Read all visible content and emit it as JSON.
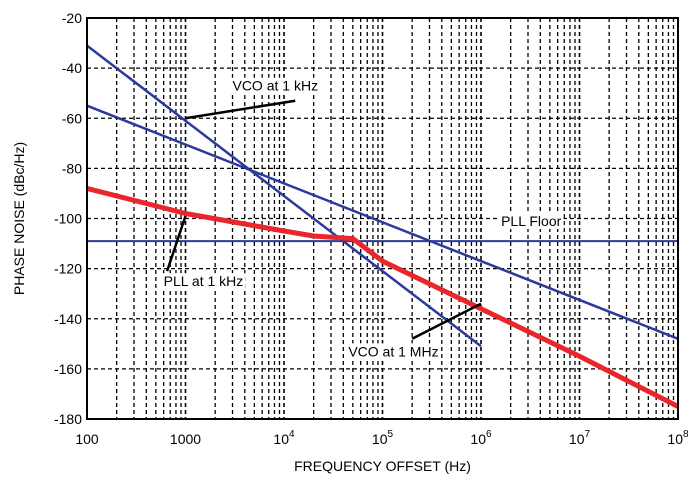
{
  "chart_data": {
    "type": "line",
    "xlabel": "FREQUENCY OFFSET (Hz)",
    "ylabel": "PHASE NOISE (dBc/Hz)",
    "xscale": "log",
    "xlim": [
      100,
      100000000
    ],
    "ylim": [
      -180,
      -20
    ],
    "grid": true,
    "x_ticks": [
      {
        "value": 100,
        "base": "100",
        "exp": ""
      },
      {
        "value": 1000,
        "base": "1000",
        "exp": ""
      },
      {
        "value": 10000,
        "base": "10",
        "exp": "4"
      },
      {
        "value": 100000,
        "base": "10",
        "exp": "5"
      },
      {
        "value": 1000000,
        "base": "10",
        "exp": "6"
      },
      {
        "value": 10000000,
        "base": "10",
        "exp": "7"
      },
      {
        "value": 100000000,
        "base": "10",
        "exp": "8"
      }
    ],
    "y_ticks": [
      "-20",
      "-40",
      "-60",
      "-80",
      "-100",
      "-120",
      "-140",
      "-160",
      "-180"
    ],
    "series": [
      {
        "color": "#2b3a9c",
        "width": 2.5,
        "x": [
          100,
          1000000
        ],
        "y": [
          -31,
          -151
        ]
      },
      {
        "color": "#2b3a9c",
        "width": 2.5,
        "x": [
          100,
          100000000
        ],
        "y": [
          -55,
          -148
        ]
      },
      {
        "color": "#2b3a9c",
        "width": 2,
        "x": [
          100,
          100000000
        ],
        "y": [
          -109,
          -109
        ]
      },
      {
        "color": "#e8262c",
        "width": 5,
        "x": [
          100,
          1000,
          10000,
          20000,
          50000,
          100000,
          1000000,
          10000000,
          100000000
        ],
        "y": [
          -88,
          -98,
          -105,
          -107,
          -108,
          -117,
          -136,
          -155,
          -175
        ]
      }
    ],
    "annotations": [
      {
        "text": "VCO at 1 kHz",
        "at": [
          3000,
          -49
        ],
        "pointer": [
          [
            13000,
            -53
          ],
          [
            1000,
            -60
          ]
        ]
      },
      {
        "text": "PLL Floor",
        "at": [
          1600000,
          -103
        ],
        "pointer": null
      },
      {
        "text": "PLL at 1 kHz",
        "at": [
          600,
          -127
        ],
        "pointer": [
          [
            650,
            -121
          ],
          [
            1000,
            -99
          ]
        ]
      },
      {
        "text": "VCO at 1 MHz",
        "at": [
          45000,
          -155
        ],
        "pointer": [
          [
            200000,
            -148
          ],
          [
            1000000,
            -134
          ]
        ]
      }
    ]
  }
}
